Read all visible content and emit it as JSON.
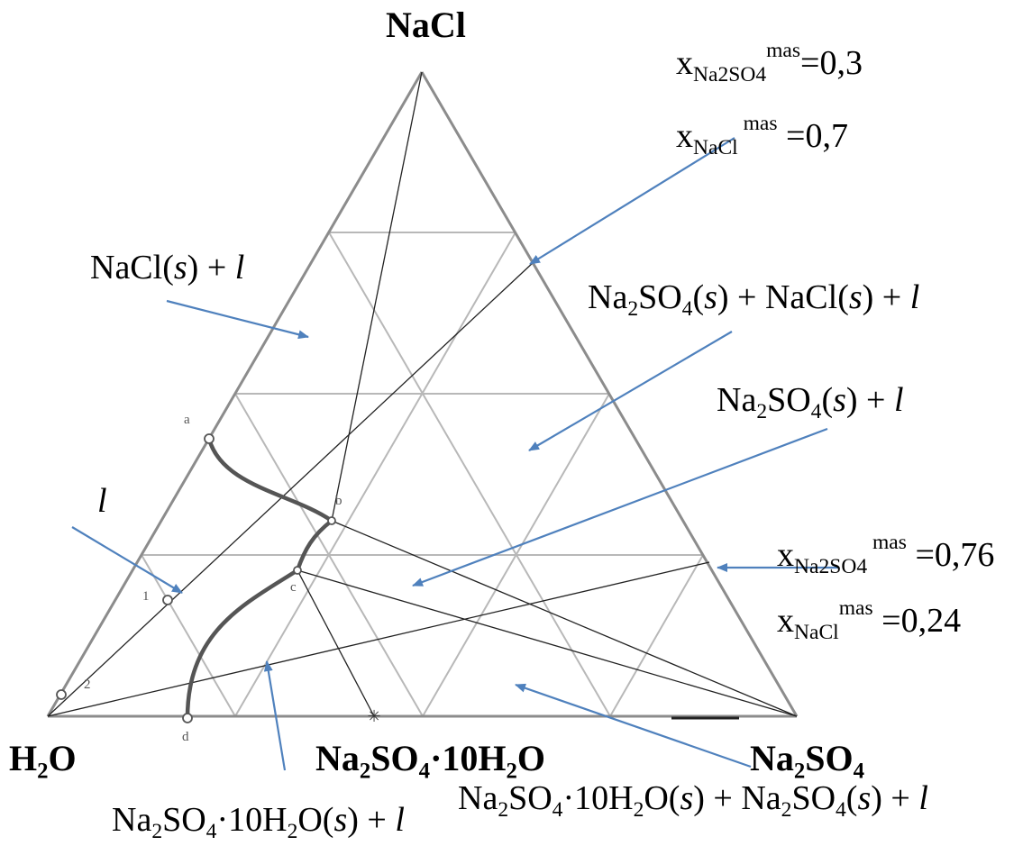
{
  "vertices": {
    "top": "NaCl",
    "left": {
      "base": "H",
      "sub": "2",
      "tail": "O"
    },
    "right": {
      "base": "Na",
      "sub1": "2",
      "mid": "SO",
      "sub2": "4"
    },
    "hydrate": {
      "a": "Na",
      "b": "2",
      "c": "SO",
      "d": "4",
      "e": "·10H",
      "f": "2",
      "g": "O"
    }
  },
  "points": {
    "a": "a",
    "b": "b",
    "c": "c",
    "d": "d",
    "p1": "1",
    "p2": "2"
  },
  "regions": {
    "nacl_l": {
      "pre": "NaCl(",
      "s": "s",
      "mid": ") + ",
      "l": "l"
    },
    "liquid": "l",
    "three_phase": {
      "t1": "Na",
      "t2": "2",
      "t3": "SO",
      "t4": "4",
      "t5": "(",
      "s1": "s",
      "t6": ") + NaCl(",
      "s2": "s",
      "t7": ") + ",
      "l": "l"
    },
    "na2so4_l": {
      "t1": "Na",
      "t2": "2",
      "t3": "SO",
      "t4": "4",
      "t5": "(",
      "s": "s",
      "t6": ") + ",
      "l": "l"
    },
    "hydrate_l": {
      "t1": "Na",
      "t2": "2",
      "t3": "SO",
      "t4": "4",
      "t5": "·10H",
      "t6": "2",
      "t7": "O(",
      "s": "s",
      "t8": ") + ",
      "l": "l"
    },
    "hydrate_na2so4_l": {
      "t1": "Na",
      "t2": "2",
      "t3": "SO",
      "t4": "4",
      "t5": "·10H",
      "t6": "2",
      "t7": "O(",
      "s1": "s",
      "t8": ") + Na",
      "t9": "2",
      "t10": "SO",
      "t11": "4",
      "t12": "(",
      "s2": "s",
      "t13": ") + ",
      "l": "l"
    }
  },
  "annotations": {
    "upper": {
      "line1": {
        "x": "x",
        "sub": "Na2SO4",
        "sup": "mas",
        "val": "=0,3"
      },
      "line2": {
        "x": "x",
        "sub": "NaCl",
        "sup": " mas",
        "val": " =0,7"
      }
    },
    "lower": {
      "line1": {
        "x": "x",
        "sub": "Na2SO4",
        "sup": " mas",
        "val": " =0,76"
      },
      "line2": {
        "x": "x",
        "sub": "NaCl",
        "sup": "mas",
        "val": " =0,24"
      }
    }
  },
  "colors": {
    "arrow": "#4f81bd",
    "grid": "#b8b8b8",
    "edge": "#8c8c8c",
    "curve": "#555555"
  }
}
